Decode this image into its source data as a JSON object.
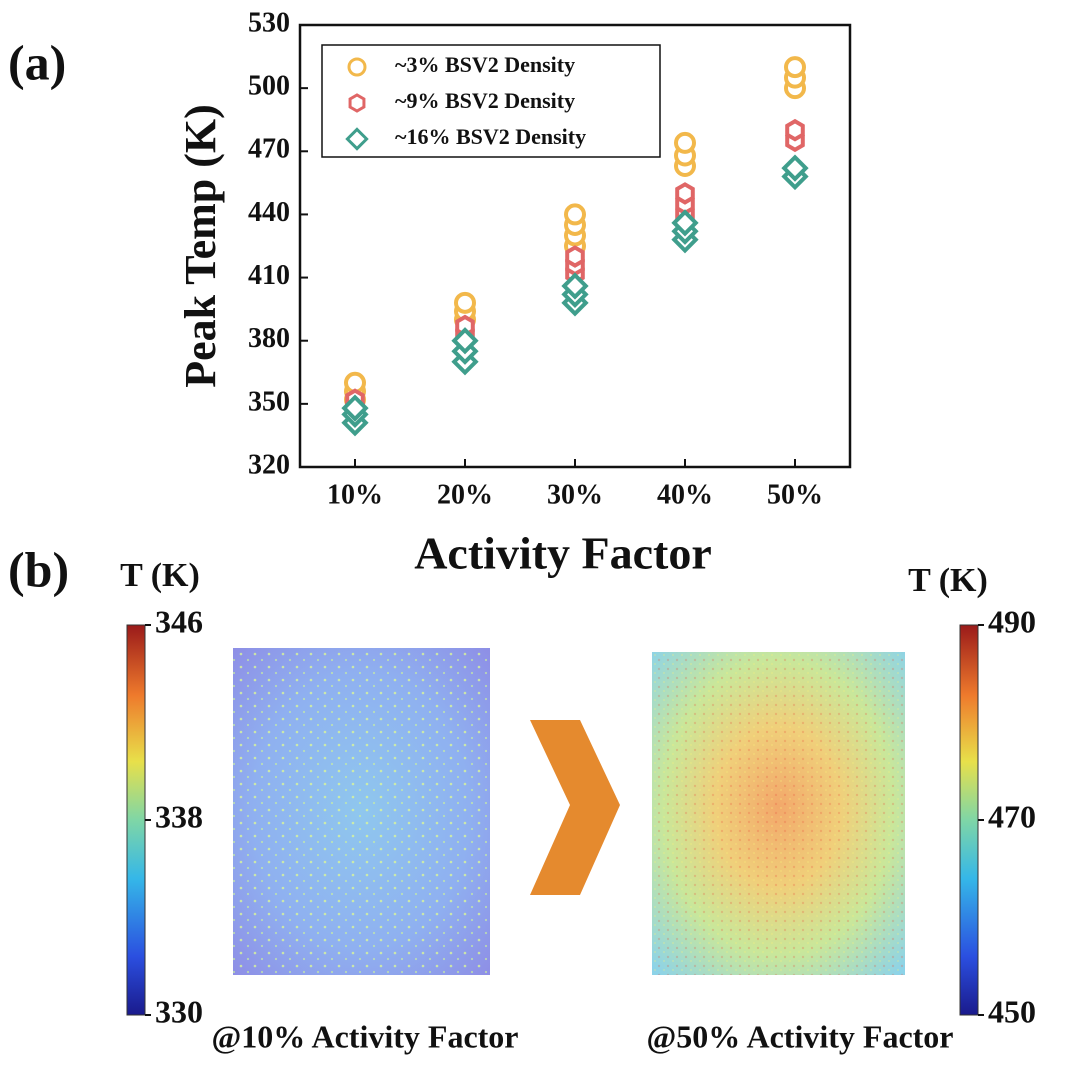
{
  "chart_data": [
    {
      "type": "scatter",
      "panel": "(a)",
      "x_label": "Activity Factor",
      "y_label": "Peak Temp (K)",
      "xlim": [
        5,
        55
      ],
      "xticks": [
        {
          "value": 10,
          "label": "10%"
        },
        {
          "value": 20,
          "label": "20%"
        },
        {
          "value": 30,
          "label": "30%"
        },
        {
          "value": 40,
          "label": "40%"
        },
        {
          "value": 50,
          "label": "50%"
        }
      ],
      "ylim": [
        320,
        530
      ],
      "yticks": [
        320,
        350,
        380,
        410,
        440,
        470,
        500,
        530
      ],
      "legend": "upper-left",
      "series": [
        {
          "name": "~3% BSV2 Density",
          "color": "#f2b84b",
          "marker": "circle",
          "x": [
            10,
            10,
            10,
            20,
            20,
            20,
            30,
            30,
            30,
            30,
            40,
            40,
            40,
            50,
            50,
            50
          ],
          "values": [
            352,
            356,
            360,
            390,
            394,
            398,
            425,
            430,
            435,
            440,
            463,
            468,
            474,
            500,
            505,
            510
          ]
        },
        {
          "name": "~9% BSV2 Density",
          "color": "#e06666",
          "marker": "hexagon",
          "x": [
            10,
            10,
            20,
            20,
            30,
            30,
            30,
            40,
            40,
            40,
            50,
            50
          ],
          "values": [
            348,
            352,
            383,
            387,
            412,
            416,
            420,
            440,
            445,
            450,
            475,
            480
          ]
        },
        {
          "name": "~16% BSV2 Density",
          "color": "#3f9e8c",
          "marker": "diamond",
          "x": [
            10,
            10,
            10,
            20,
            20,
            20,
            30,
            30,
            30,
            40,
            40,
            40,
            50,
            50
          ],
          "values": [
            341,
            345,
            348,
            370,
            375,
            380,
            398,
            402,
            406,
            428,
            432,
            436,
            458,
            462
          ]
        }
      ]
    },
    {
      "type": "heatmap",
      "panel": "(b)",
      "colorbar_title": "T (K)",
      "caption": "@10% Activity Factor",
      "clim": [
        330,
        346
      ],
      "cticks": [
        330,
        338,
        346
      ]
    },
    {
      "type": "heatmap",
      "colorbar_title": "T (K)",
      "caption": "@50% Activity Factor",
      "clim": [
        450,
        490
      ],
      "cticks": [
        450,
        470,
        490
      ]
    }
  ]
}
